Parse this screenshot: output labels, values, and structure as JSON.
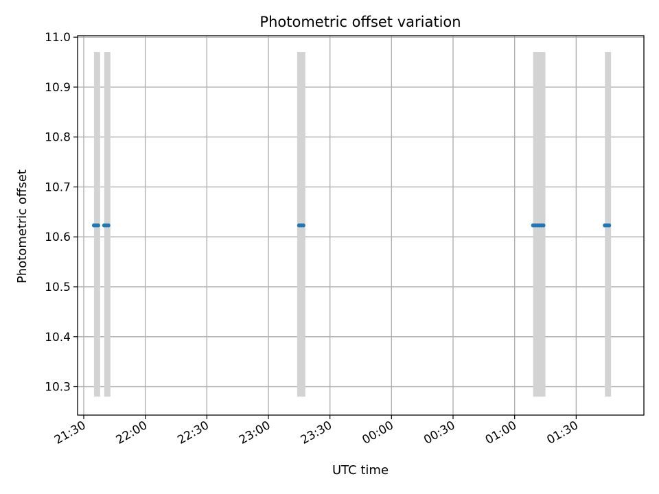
{
  "chart_data": {
    "type": "scatter",
    "title": "Photometric offset variation",
    "xlabel": "UTC time",
    "ylabel": "Photometric offset",
    "grid": true,
    "x_axis_type": "time",
    "x_ticks": [
      {
        "time": "21:30",
        "label": "21:30"
      },
      {
        "time": "22:00",
        "label": "22:00"
      },
      {
        "time": "22:30",
        "label": "22:30"
      },
      {
        "time": "23:00",
        "label": "23:00"
      },
      {
        "time": "23:30",
        "label": "23:30"
      },
      {
        "time": "00:00",
        "label": "00:00"
      },
      {
        "time": "00:30",
        "label": "00:30"
      },
      {
        "time": "01:00",
        "label": "01:00"
      },
      {
        "time": "01:30",
        "label": "01:30"
      }
    ],
    "xlim": [
      "21:27",
      "02:03"
    ],
    "ylim": [
      10.243,
      11.003
    ],
    "y_ticks": [
      10.3,
      10.4,
      10.5,
      10.6,
      10.7,
      10.8,
      10.9,
      11.0
    ],
    "y_tick_labels": [
      "10.3",
      "10.4",
      "10.5",
      "10.6",
      "10.7",
      "10.8",
      "10.9",
      "11.0"
    ],
    "bands": [
      {
        "start": "21:35",
        "end": "21:38",
        "ymin": 10.28,
        "ymax": 10.97,
        "color": "#d3d3d3"
      },
      {
        "start": "21:40",
        "end": "21:43",
        "ymin": 10.28,
        "ymax": 10.97,
        "color": "#d3d3d3"
      },
      {
        "start": "23:14",
        "end": "23:18",
        "ymin": 10.28,
        "ymax": 10.97,
        "color": "#d3d3d3"
      },
      {
        "start": "01:09",
        "end": "01:15",
        "ymin": 10.28,
        "ymax": 10.97,
        "color": "#d3d3d3"
      },
      {
        "start": "01:44",
        "end": "01:47",
        "ymin": 10.28,
        "ymax": 10.97,
        "color": "#d3d3d3"
      }
    ],
    "series": [
      {
        "color": "#1f77b4",
        "points": [
          {
            "x": "21:35",
            "y": 10.623
          },
          {
            "x": "21:36",
            "y": 10.623
          },
          {
            "x": "21:37",
            "y": 10.623
          },
          {
            "x": "21:40",
            "y": 10.623
          },
          {
            "x": "21:41",
            "y": 10.623
          },
          {
            "x": "21:42",
            "y": 10.623
          },
          {
            "x": "23:15",
            "y": 10.623
          },
          {
            "x": "23:16",
            "y": 10.623
          },
          {
            "x": "23:17",
            "y": 10.623
          },
          {
            "x": "01:09",
            "y": 10.623
          },
          {
            "x": "01:10",
            "y": 10.623
          },
          {
            "x": "01:11",
            "y": 10.623
          },
          {
            "x": "01:12",
            "y": 10.623
          },
          {
            "x": "01:13",
            "y": 10.623
          },
          {
            "x": "01:14",
            "y": 10.623
          },
          {
            "x": "01:44",
            "y": 10.623
          },
          {
            "x": "01:45",
            "y": 10.623
          },
          {
            "x": "01:46",
            "y": 10.623
          }
        ]
      }
    ]
  }
}
